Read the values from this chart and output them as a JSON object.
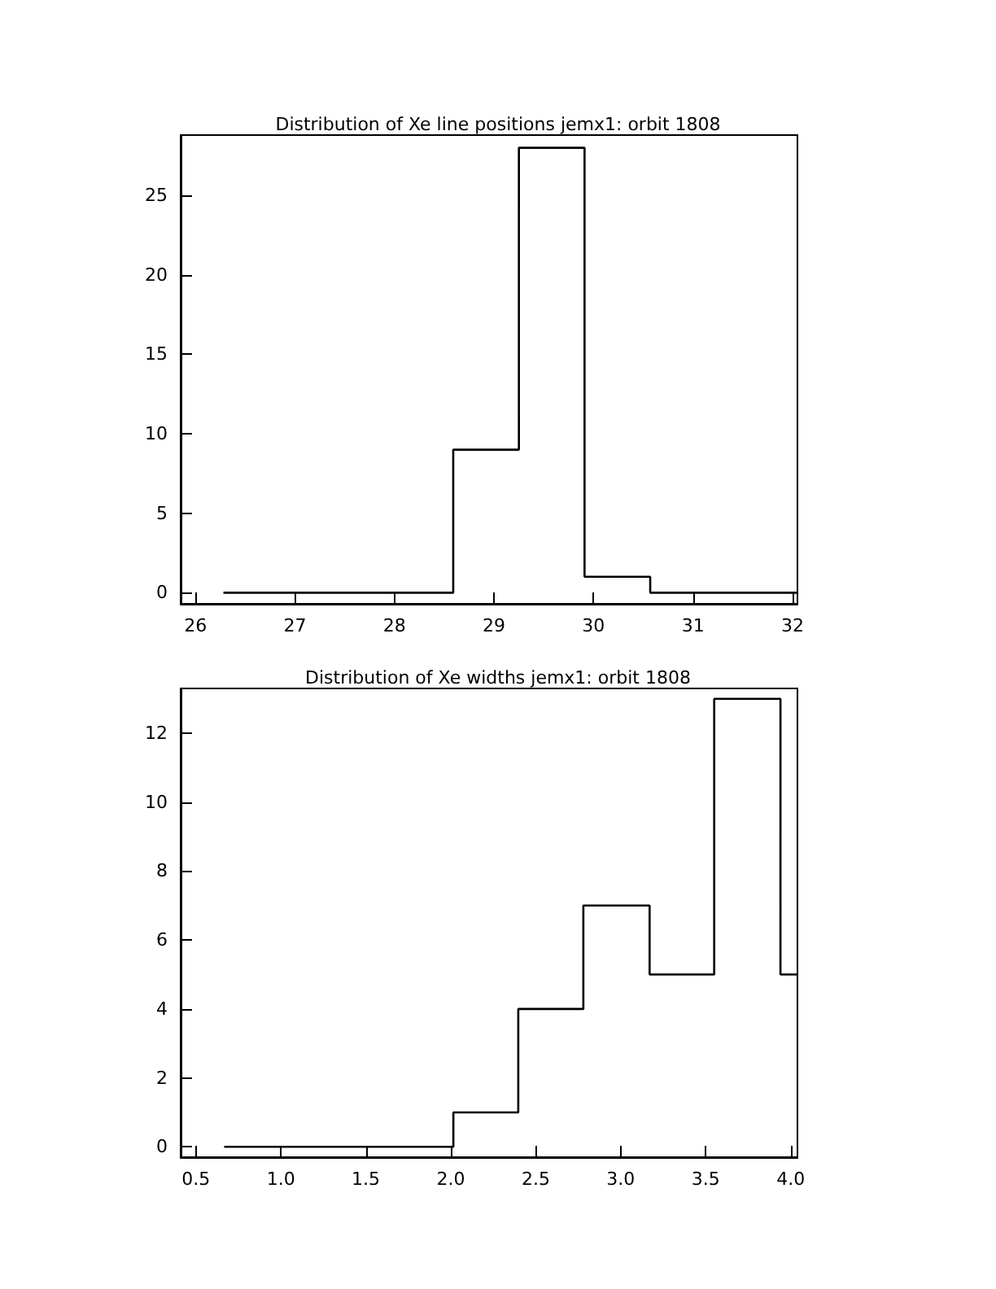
{
  "chart_data": [
    {
      "type": "step",
      "title": "Distribution of Xe line positions jemx1: orbit 1808",
      "x": [
        26.28,
        28.59,
        29.25,
        29.91,
        30.57,
        32.05
      ],
      "values": [
        0,
        9,
        28,
        1,
        0,
        0
      ],
      "color": "#000000",
      "xlim": [
        25.85,
        32.05
      ],
      "xticks": [
        26,
        27,
        28,
        29,
        30,
        31,
        32
      ],
      "ylim": [
        -0.7,
        28.8
      ],
      "yticks": [
        0,
        5,
        10,
        15,
        20,
        25
      ],
      "grid": false
    },
    {
      "type": "step",
      "title": "Distribution of Xe widths jemx1: orbit 1808",
      "x": [
        0.666,
        2.015,
        2.397,
        2.78,
        3.17,
        3.55,
        3.94,
        4.04
      ],
      "values": [
        0,
        1,
        4,
        7,
        5,
        13,
        5,
        5
      ],
      "color": "#000000",
      "xlim": [
        0.41,
        4.04
      ],
      "xticks": [
        {
          "value": 0.5,
          "label": "0.5"
        },
        {
          "value": 1,
          "label": "1.0"
        },
        {
          "value": 1.5,
          "label": "1.5"
        },
        {
          "value": 2,
          "label": "2.0"
        },
        {
          "value": 2.5,
          "label": "2.5"
        },
        {
          "value": 3,
          "label": "3.0"
        },
        {
          "value": 3.5,
          "label": "3.5"
        },
        {
          "value": 4,
          "label": "4.0"
        }
      ],
      "ylim": [
        -0.3,
        13.3
      ],
      "yticks": [
        0,
        2,
        4,
        6,
        8,
        10,
        12
      ],
      "grid": false
    }
  ]
}
